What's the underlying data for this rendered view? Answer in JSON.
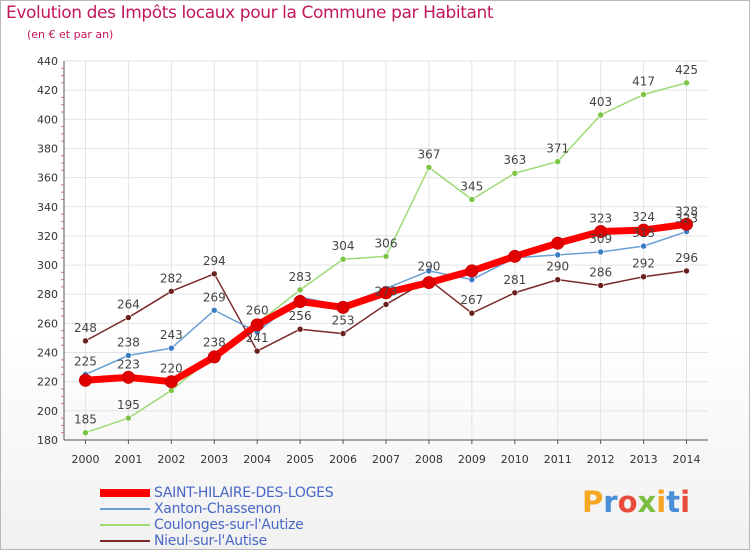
{
  "header": {
    "title": "Evolution des Impôts locaux pour la Commune par Habitant",
    "subtitle": "(en € et par an)"
  },
  "brand": {
    "text": "Proxiti",
    "letters": [
      "P",
      "r",
      "o",
      "x",
      "i",
      "t",
      "i"
    ],
    "colors": [
      "#f5a623",
      "#4a90d9",
      "#e84c3d",
      "#7cbd42",
      "#f5a623",
      "#4a90d9",
      "#e84c3d"
    ]
  },
  "chart_data": {
    "type": "line",
    "title": "Evolution des Impôts locaux pour la Commune par Habitant",
    "subtitle": "(en € et par an)",
    "xlabel": "",
    "ylabel": "",
    "ylim": [
      180,
      440
    ],
    "yticks": [
      180,
      200,
      220,
      240,
      260,
      280,
      300,
      320,
      340,
      360,
      380,
      400,
      420,
      440
    ],
    "categories": [
      "2000",
      "2001",
      "2002",
      "2003",
      "2004",
      "2005",
      "2006",
      "2007",
      "2008",
      "2009",
      "2010",
      "2011",
      "2012",
      "2013",
      "2014"
    ],
    "grid": true,
    "legend_position": "bottom-left",
    "series": [
      {
        "name": "SAINT-HILAIRE-DES-LOGES",
        "color": "#ff0000",
        "marker": "#e00000",
        "values": [
          221,
          223,
          220,
          237,
          259,
          275,
          271,
          281,
          288,
          296,
          306,
          315,
          323,
          324,
          328
        ],
        "labels": [
          false,
          true,
          true,
          false,
          false,
          false,
          false,
          false,
          false,
          false,
          false,
          false,
          true,
          true,
          true
        ]
      },
      {
        "name": "Xanton-Chassenon",
        "color": "#6a9fd4",
        "marker": "#3a7cc4",
        "values": [
          225,
          238,
          243,
          269,
          254,
          278,
          272,
          284,
          296,
          290,
          305,
          307,
          309,
          313,
          323
        ],
        "labels": [
          true,
          true,
          true,
          true,
          false,
          false,
          false,
          false,
          false,
          false,
          false,
          false,
          true,
          true,
          true
        ]
      },
      {
        "name": "Coulonges-sur-l'Autize",
        "color": "#9fda76",
        "marker": "#7cc443",
        "values": [
          185,
          195,
          214,
          238,
          260,
          283,
          304,
          306,
          367,
          345,
          363,
          371,
          403,
          417,
          425
        ],
        "labels": [
          true,
          true,
          false,
          true,
          true,
          true,
          true,
          true,
          true,
          true,
          true,
          true,
          true,
          true,
          true
        ]
      },
      {
        "name": "Nieul-sur-l'Autise",
        "color": "#7a2a2a",
        "marker": "#6b1f1f",
        "values": [
          248,
          264,
          282,
          294,
          241,
          256,
          253,
          273,
          290,
          267,
          281,
          290,
          286,
          292,
          296
        ],
        "labels": [
          true,
          true,
          true,
          true,
          true,
          true,
          true,
          true,
          true,
          true,
          true,
          true,
          true,
          true,
          true
        ]
      }
    ]
  }
}
